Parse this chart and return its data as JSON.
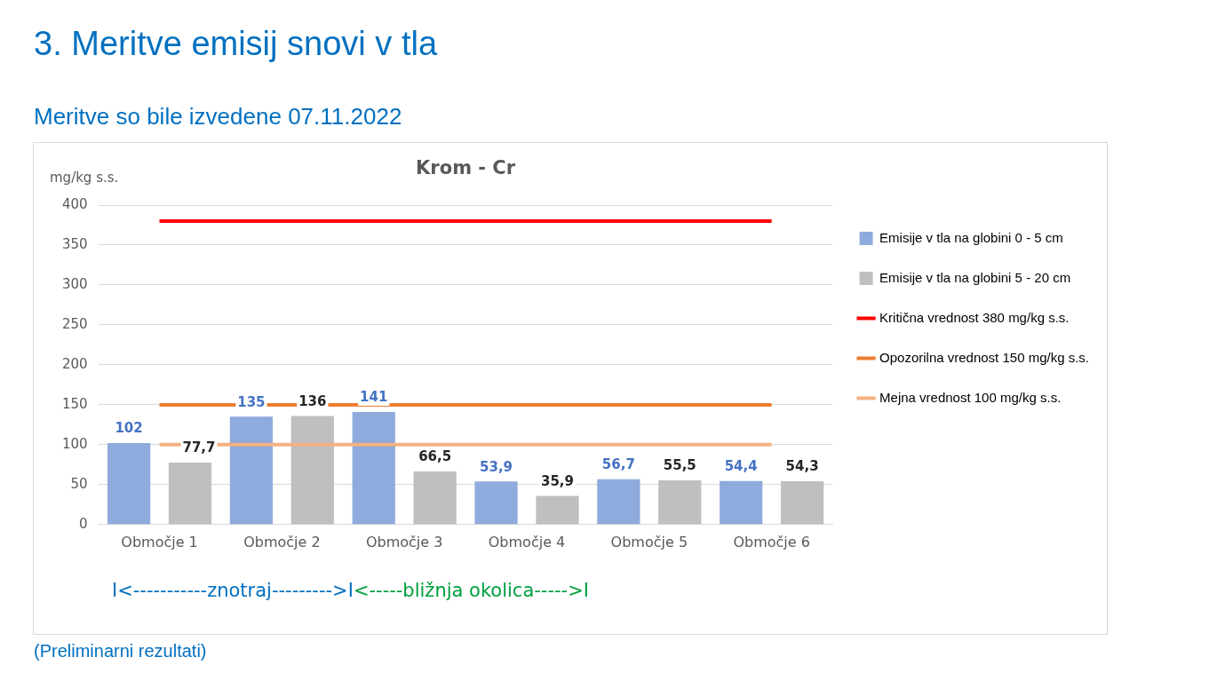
{
  "chart_data": {
    "type": "bar",
    "title": "3. Meritve emisij snovi v tla",
    "subtitle": "Meritve so bile izvedene 07.11.2022",
    "ylabel": "mg/kg s.s.",
    "categories": [
      "Območje 1",
      "Območje 2",
      "Območje 3",
      "Območje 4",
      "Območje 5",
      "Območje 6"
    ],
    "series": [
      {
        "name": "Emisije v tla na globini 0 - 5 cm",
        "color": "#8faadc",
        "values": [
          102,
          135,
          141,
          53.9,
          56.7,
          54.4
        ],
        "value_labels": [
          "102",
          "135",
          "141",
          "53,9",
          "56,7",
          "54,4"
        ]
      },
      {
        "name": "Emisije v tla na globini 5 - 20 cm",
        "color": "#bfbfbf",
        "values": [
          77.7,
          136,
          66.5,
          35.9,
          55.5,
          54.3
        ],
        "value_labels": [
          "77,7",
          "136",
          "66,5",
          "35,9",
          "55,5",
          "54,3"
        ]
      },
      {
        "name": "Kritična vrednost 380 mg/kg s.s.",
        "type": "line",
        "color": "#ff0000",
        "values": [
          380,
          380,
          380,
          380,
          380,
          380
        ]
      },
      {
        "name": "Opozorilna vrednost 150 mg/kg s.s.",
        "type": "line",
        "color": "#ed7d31",
        "values": [
          150,
          150,
          150,
          150,
          150,
          150
        ]
      },
      {
        "name": "Mejna vrednost 100 mg/kg s.s.",
        "type": "line",
        "color": "#f4b183",
        "values": [
          100,
          100,
          100,
          100,
          100,
          100
        ]
      }
    ],
    "ylim": [
      0,
      400
    ],
    "yticks": [
      0,
      50,
      100,
      150,
      200,
      250,
      300,
      350,
      400
    ],
    "grid": "y",
    "legend": "right",
    "marker": "none",
    "annotations": [
      "Krom - Cr",
      "I<-----------znotraj--------->I",
      "<-----bližnja okolica----->I",
      "(Preliminarni rezultati)"
    ]
  }
}
